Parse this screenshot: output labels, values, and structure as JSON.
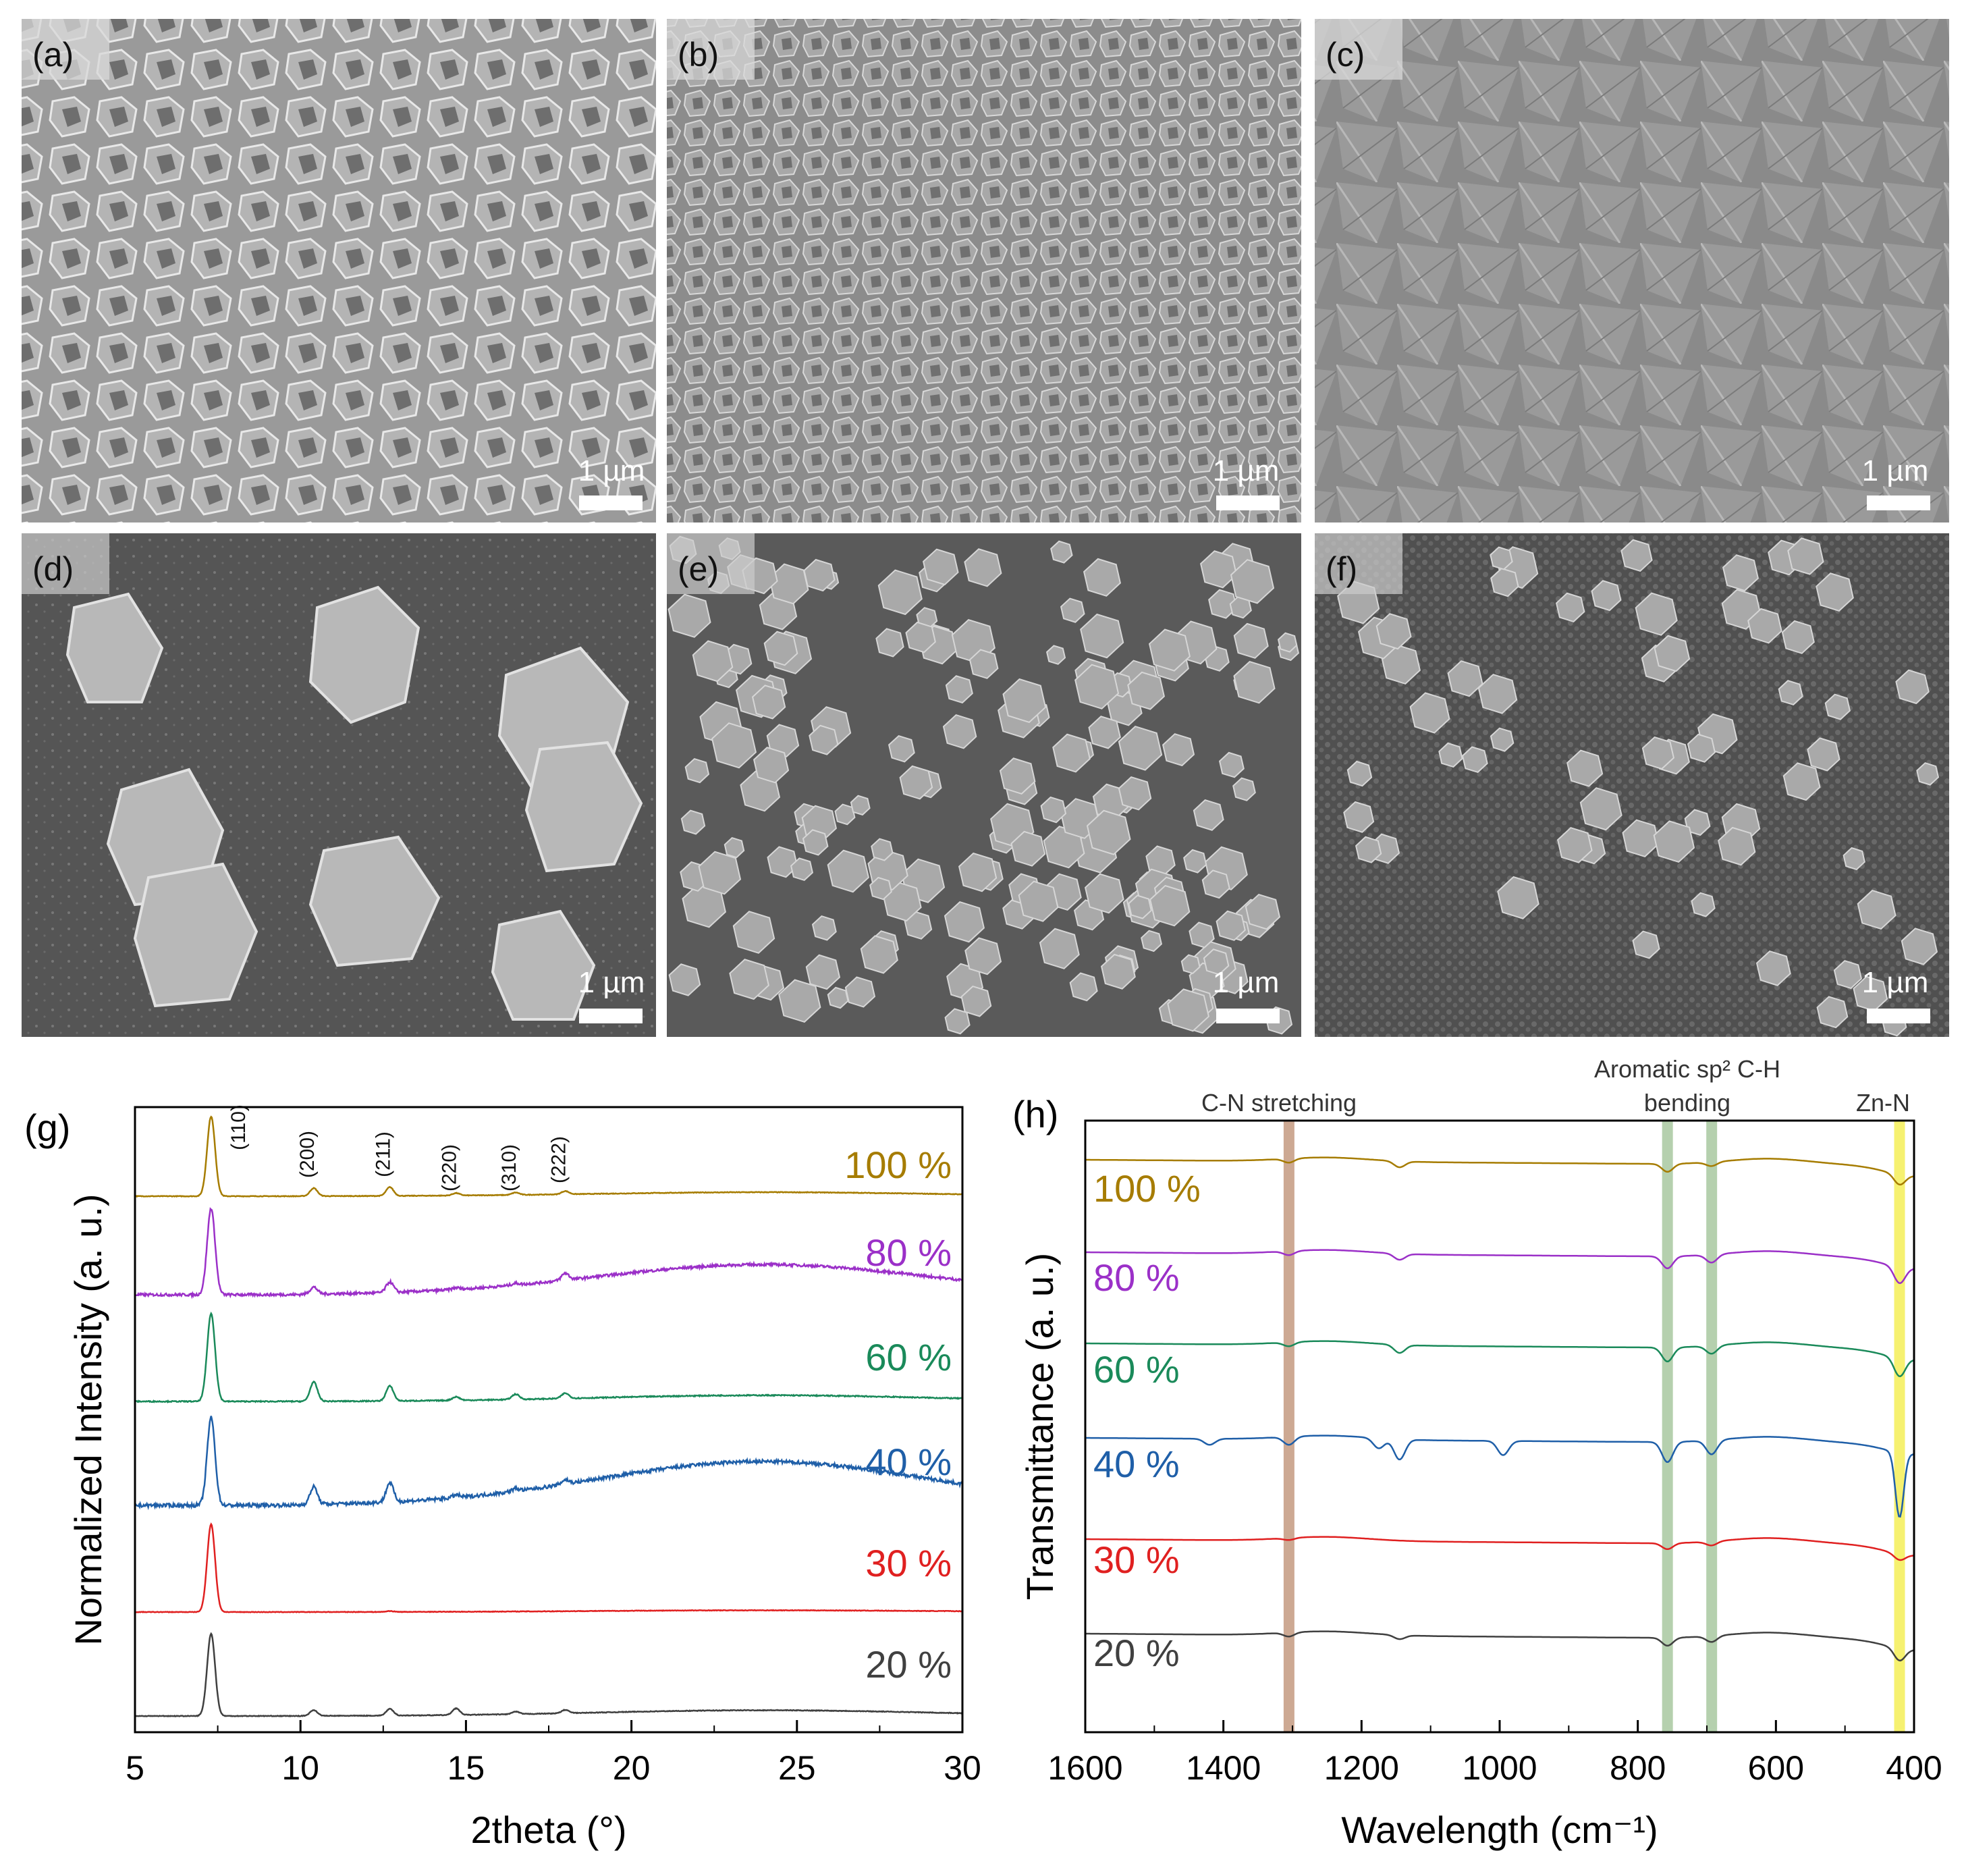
{
  "panels": [
    {
      "letter": "(a)",
      "scale": "1 µm",
      "background": "#9a9a9a",
      "crystal": "dense faceted crystals"
    },
    {
      "letter": "(b)",
      "scale": "1 µm",
      "background": "#8c8c8c",
      "crystal": "dense small crystals"
    },
    {
      "letter": "(c)",
      "scale": "1 µm",
      "background": "#8a8a8a",
      "crystal": "dense fused film"
    },
    {
      "letter": "(d)",
      "scale": "1 µm",
      "background": "#555555",
      "crystal": "sparse large dodecahedra"
    },
    {
      "letter": "(e)",
      "scale": "1 µm",
      "background": "#5a5a5a",
      "crystal": "medium particles"
    },
    {
      "letter": "(f)",
      "scale": "1 µm",
      "background": "#505050",
      "crystal": "sparse small particles"
    }
  ],
  "chart_data": [
    {
      "type": "line",
      "panel_label": "(g)",
      "title": "",
      "xlabel": "2theta (°)",
      "ylabel": "Normalized Intensity (a. u.)",
      "xlim": [
        5,
        30
      ],
      "xticks": [
        "5",
        "10",
        "15",
        "20",
        "25",
        "30"
      ],
      "yticks": false,
      "grid": false,
      "legend": "labels at right end of each trace",
      "peak_positions": [
        7.3,
        10.4,
        12.7,
        14.7,
        16.5,
        18.0
      ],
      "peak_labels": [
        "(110)",
        "(200)",
        "(211)",
        "(220)",
        "(310)",
        "(222)"
      ],
      "series": [
        {
          "name": "100 %",
          "color": "#a67c00",
          "baseline": 0.0,
          "peaks": [
            1.0,
            0.1,
            0.11,
            0.03,
            0.03,
            0.04
          ],
          "hump": 0.05,
          "noise": 0.004
        },
        {
          "name": "80 %",
          "color": "#9b30c8",
          "baseline": 0.0,
          "peaks": [
            1.0,
            0.08,
            0.12,
            0.02,
            0.02,
            0.08
          ],
          "hump": 0.35,
          "noise": 0.015
        },
        {
          "name": "60 %",
          "color": "#1a8a5a",
          "baseline": 0.0,
          "peaks": [
            1.0,
            0.22,
            0.17,
            0.04,
            0.06,
            0.06
          ],
          "hump": 0.07,
          "noise": 0.006
        },
        {
          "name": "40 %",
          "color": "#1f5fa8",
          "baseline": 0.0,
          "peaks": [
            1.0,
            0.2,
            0.22,
            0.03,
            0.03,
            0.05
          ],
          "hump": 0.5,
          "noise": 0.02
        },
        {
          "name": "30 %",
          "color": "#e02020",
          "baseline": 0.0,
          "peaks": [
            1.0,
            0.0,
            0.01,
            0.0,
            0.0,
            0.0
          ],
          "hump": 0.02,
          "noise": 0.003
        },
        {
          "name": "20 %",
          "color": "#404040",
          "baseline": 0.0,
          "peaks": [
            1.0,
            0.07,
            0.08,
            0.08,
            0.03,
            0.04
          ],
          "hump": 0.07,
          "noise": 0.004
        }
      ]
    },
    {
      "type": "line",
      "panel_label": "(h)",
      "title": "",
      "xlabel": "Wavelength (cm⁻¹)",
      "ylabel": "Transmittance (a. u.)",
      "xlim": [
        1600,
        400
      ],
      "xticks": [
        "1600",
        "1400",
        "1200",
        "1000",
        "800",
        "600",
        "400"
      ],
      "yticks": false,
      "grid": false,
      "legend": "labels at left above each trace",
      "bands": [
        {
          "label": "C-N stretching",
          "center": 1305,
          "color": "#c49a80"
        },
        {
          "label": "Aromatic sp² C-H",
          "label2": "bending",
          "center": 757,
          "color": "#a8c8a0",
          "second_center": 693
        },
        {
          "label": "Zn-N",
          "center": 421,
          "color": "#f5f060"
        }
      ],
      "series": [
        {
          "name": "100 %",
          "color": "#a67c00",
          "dips": [
            [
              1305,
              0.02
            ],
            [
              1145,
              0.03
            ],
            [
              757,
              0.04
            ],
            [
              693,
              0.02
            ],
            [
              421,
              0.05
            ]
          ]
        },
        {
          "name": "80 %",
          "color": "#9b30c8",
          "dips": [
            [
              1305,
              0.02
            ],
            [
              1145,
              0.03
            ],
            [
              757,
              0.06
            ],
            [
              693,
              0.04
            ],
            [
              421,
              0.08
            ]
          ]
        },
        {
          "name": "60 %",
          "color": "#1a8a5a",
          "dips": [
            [
              1305,
              0.02
            ],
            [
              1145,
              0.04
            ],
            [
              757,
              0.07
            ],
            [
              693,
              0.04
            ],
            [
              421,
              0.09
            ]
          ]
        },
        {
          "name": "40 %",
          "color": "#1f5fa8",
          "dips": [
            [
              1420,
              0.03
            ],
            [
              1305,
              0.04
            ],
            [
              1175,
              0.05
            ],
            [
              1145,
              0.1
            ],
            [
              995,
              0.07
            ],
            [
              757,
              0.1
            ],
            [
              693,
              0.07
            ],
            [
              421,
              0.32
            ]
          ]
        },
        {
          "name": "30 %",
          "color": "#e02020",
          "dips": [
            [
              1305,
              0.01
            ],
            [
              757,
              0.03
            ],
            [
              693,
              0.02
            ],
            [
              421,
              0.03
            ]
          ]
        },
        {
          "name": "20 %",
          "color": "#404040",
          "dips": [
            [
              1305,
              0.02
            ],
            [
              1145,
              0.02
            ],
            [
              757,
              0.04
            ],
            [
              693,
              0.03
            ],
            [
              421,
              0.06
            ]
          ]
        }
      ]
    }
  ]
}
